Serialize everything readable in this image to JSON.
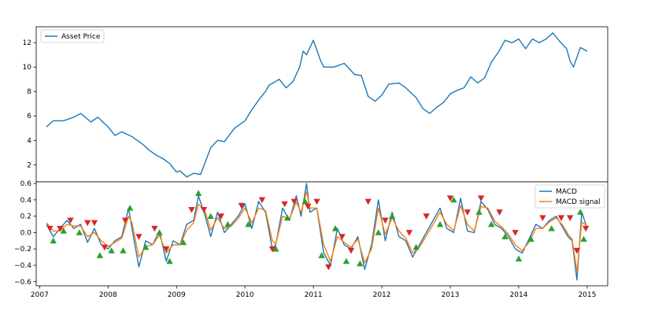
{
  "chart_data": [
    {
      "type": "line",
      "panel": "top",
      "legend_position": "upper-left",
      "xlim": [
        2006.95,
        2015.3
      ],
      "ylim": [
        0.6,
        13.3
      ],
      "grid": false,
      "yticks": [
        2,
        4,
        6,
        8,
        10,
        12
      ],
      "ytick_labels": [
        "2",
        "4",
        "6",
        "8",
        "10",
        "12"
      ],
      "series": [
        {
          "name": "Asset Price",
          "color": "#1f77b4",
          "x": [
            2007.1,
            2007.2,
            2007.35,
            2007.5,
            2007.6,
            2007.75,
            2007.85,
            2008.0,
            2008.1,
            2008.2,
            2008.35,
            2008.5,
            2008.6,
            2008.7,
            2008.8,
            2008.9,
            2009.0,
            2009.05,
            2009.15,
            2009.25,
            2009.35,
            2009.5,
            2009.6,
            2009.7,
            2009.85,
            2010.0,
            2010.1,
            2010.2,
            2010.3,
            2010.35,
            2010.5,
            2010.6,
            2010.7,
            2010.8,
            2010.85,
            2010.9,
            2011.0,
            2011.1,
            2011.15,
            2011.3,
            2011.45,
            2011.6,
            2011.7,
            2011.8,
            2011.9,
            2012.0,
            2012.1,
            2012.25,
            2012.35,
            2012.5,
            2012.6,
            2012.7,
            2012.8,
            2012.9,
            2013.0,
            2013.1,
            2013.2,
            2013.3,
            2013.4,
            2013.5,
            2013.6,
            2013.7,
            2013.8,
            2013.9,
            2014.0,
            2014.1,
            2014.2,
            2014.3,
            2014.4,
            2014.5,
            2014.6,
            2014.7,
            2014.75,
            2014.8,
            2014.9,
            2015.0
          ],
          "values": [
            5.1,
            5.6,
            5.6,
            5.9,
            6.2,
            5.5,
            5.9,
            5.1,
            4.4,
            4.7,
            4.3,
            3.7,
            3.2,
            2.8,
            2.5,
            2.1,
            1.4,
            1.5,
            1.0,
            1.3,
            1.2,
            3.4,
            4.0,
            3.9,
            5.0,
            5.6,
            6.5,
            7.3,
            8.0,
            8.5,
            9.0,
            8.3,
            8.8,
            10.0,
            11.3,
            11.0,
            12.2,
            10.6,
            10.0,
            10.0,
            10.3,
            9.4,
            9.3,
            7.6,
            7.2,
            7.7,
            8.6,
            8.7,
            8.3,
            7.5,
            6.6,
            6.2,
            6.7,
            7.1,
            7.8,
            8.1,
            8.3,
            9.2,
            8.7,
            9.1,
            10.4,
            11.2,
            12.2,
            12.0,
            12.3,
            11.5,
            12.3,
            12.0,
            12.3,
            12.8,
            12.1,
            11.5,
            10.5,
            10.0,
            11.6,
            11.3
          ]
        }
      ]
    },
    {
      "type": "line",
      "panel": "bottom",
      "legend_position": "upper-right",
      "xlim": [
        2006.95,
        2015.3
      ],
      "ylim": [
        -0.65,
        0.62
      ],
      "grid": false,
      "yticks": [
        -0.6,
        -0.4,
        -0.2,
        0.0,
        0.2,
        0.4,
        0.6
      ],
      "ytick_labels": [
        "−0.6",
        "−0.4",
        "−0.2",
        "0.0",
        "0.2",
        "0.4",
        "0.6"
      ],
      "xticks": [
        2007,
        2008,
        2009,
        2010,
        2011,
        2012,
        2013,
        2014,
        2015
      ],
      "xtick_labels": [
        "2007",
        "2008",
        "2009",
        "2010",
        "2011",
        "2012",
        "2013",
        "2014",
        "2015"
      ],
      "series": [
        {
          "name": "MACD",
          "color": "#1f77b4",
          "x": [
            2007.1,
            2007.2,
            2007.3,
            2007.4,
            2007.5,
            2007.6,
            2007.7,
            2007.8,
            2007.9,
            2008.0,
            2008.1,
            2008.2,
            2008.3,
            2008.35,
            2008.45,
            2008.55,
            2008.65,
            2008.75,
            2008.85,
            2008.95,
            2009.05,
            2009.15,
            2009.25,
            2009.32,
            2009.42,
            2009.5,
            2009.6,
            2009.7,
            2009.8,
            2009.9,
            2010.0,
            2010.1,
            2010.2,
            2010.3,
            2010.4,
            2010.45,
            2010.55,
            2010.65,
            2010.75,
            2010.82,
            2010.9,
            2010.95,
            2011.05,
            2011.15,
            2011.25,
            2011.35,
            2011.45,
            2011.55,
            2011.65,
            2011.75,
            2011.85,
            2011.95,
            2012.05,
            2012.15,
            2012.25,
            2012.35,
            2012.45,
            2012.55,
            2012.65,
            2012.75,
            2012.85,
            2012.95,
            2013.05,
            2013.15,
            2013.25,
            2013.35,
            2013.45,
            2013.55,
            2013.65,
            2013.75,
            2013.85,
            2013.95,
            2014.05,
            2014.15,
            2014.25,
            2014.35,
            2014.45,
            2014.55,
            2014.65,
            2014.72,
            2014.78,
            2014.85,
            2014.92,
            2015.0
          ],
          "values": [
            0.1,
            -0.05,
            0.05,
            0.15,
            0.05,
            0.1,
            -0.12,
            0.05,
            -0.15,
            -0.2,
            -0.1,
            -0.05,
            0.3,
            0.05,
            -0.42,
            -0.1,
            -0.15,
            0.02,
            -0.35,
            -0.1,
            -0.15,
            0.1,
            0.15,
            0.45,
            0.2,
            -0.05,
            0.25,
            0.0,
            0.1,
            0.2,
            0.35,
            0.05,
            0.38,
            0.25,
            -0.2,
            -0.15,
            0.3,
            0.15,
            0.45,
            0.2,
            0.6,
            0.25,
            0.3,
            -0.25,
            -0.4,
            0.05,
            -0.15,
            -0.2,
            -0.05,
            -0.45,
            -0.15,
            0.4,
            -0.1,
            0.25,
            -0.05,
            -0.1,
            -0.3,
            -0.15,
            0.0,
            0.15,
            0.3,
            0.05,
            0.0,
            0.42,
            0.02,
            0.0,
            0.38,
            0.28,
            0.1,
            0.05,
            -0.05,
            -0.2,
            -0.25,
            -0.08,
            0.1,
            0.05,
            0.15,
            0.2,
            0.05,
            -0.05,
            -0.1,
            -0.58,
            0.25,
            0.05
          ]
        },
        {
          "name": "MACD signal",
          "color": "#ff7f0e",
          "x": [
            2007.1,
            2007.2,
            2007.3,
            2007.4,
            2007.5,
            2007.6,
            2007.7,
            2007.8,
            2007.9,
            2008.0,
            2008.1,
            2008.2,
            2008.3,
            2008.35,
            2008.45,
            2008.55,
            2008.65,
            2008.75,
            2008.85,
            2008.95,
            2009.05,
            2009.15,
            2009.25,
            2009.32,
            2009.42,
            2009.5,
            2009.6,
            2009.7,
            2009.8,
            2009.9,
            2010.0,
            2010.1,
            2010.2,
            2010.3,
            2010.4,
            2010.45,
            2010.55,
            2010.65,
            2010.75,
            2010.82,
            2010.9,
            2010.95,
            2011.05,
            2011.15,
            2011.25,
            2011.35,
            2011.45,
            2011.55,
            2011.65,
            2011.75,
            2011.85,
            2011.95,
            2012.05,
            2012.15,
            2012.25,
            2012.35,
            2012.45,
            2012.55,
            2012.65,
            2012.75,
            2012.85,
            2012.95,
            2013.05,
            2013.15,
            2013.25,
            2013.35,
            2013.45,
            2013.55,
            2013.65,
            2013.75,
            2013.85,
            2013.95,
            2014.05,
            2014.15,
            2014.25,
            2014.35,
            2014.45,
            2014.55,
            2014.65,
            2014.72,
            2014.78,
            2014.85,
            2014.92,
            2015.0
          ],
          "values": [
            0.12,
            0.02,
            0.02,
            0.1,
            0.08,
            0.08,
            -0.05,
            0.0,
            -0.1,
            -0.17,
            -0.12,
            -0.07,
            0.2,
            0.12,
            -0.3,
            -0.17,
            -0.15,
            -0.03,
            -0.25,
            -0.15,
            -0.15,
            0.03,
            0.12,
            0.35,
            0.25,
            0.03,
            0.18,
            0.05,
            0.08,
            0.17,
            0.3,
            0.12,
            0.3,
            0.27,
            -0.1,
            -0.14,
            0.2,
            0.17,
            0.37,
            0.25,
            0.5,
            0.3,
            0.3,
            -0.15,
            -0.35,
            -0.05,
            -0.12,
            -0.18,
            -0.08,
            -0.37,
            -0.2,
            0.3,
            -0.02,
            0.18,
            0.02,
            -0.07,
            -0.25,
            -0.18,
            -0.04,
            0.1,
            0.25,
            0.1,
            0.02,
            0.33,
            0.1,
            0.02,
            0.32,
            0.3,
            0.14,
            0.07,
            -0.02,
            -0.15,
            -0.22,
            -0.12,
            0.05,
            0.05,
            0.13,
            0.18,
            0.08,
            -0.02,
            -0.08,
            -0.48,
            0.13,
            0.08
          ]
        },
        {
          "name": "",
          "marker": "triangle-up",
          "color": "#2ca02c",
          "x": [
            2007.2,
            2007.35,
            2007.58,
            2007.88,
            2008.05,
            2008.22,
            2008.32,
            2008.55,
            2008.75,
            2008.9,
            2009.1,
            2009.32,
            2009.5,
            2009.75,
            2010.05,
            2010.45,
            2010.62,
            2010.88,
            2011.12,
            2011.32,
            2011.48,
            2011.68,
            2011.95,
            2012.15,
            2012.5,
            2012.85,
            2013.05,
            2013.42,
            2013.6,
            2013.8,
            2014.0,
            2014.18,
            2014.48,
            2014.9,
            2014.95
          ],
          "values": [
            -0.1,
            0.02,
            0.0,
            -0.28,
            -0.22,
            -0.22,
            0.3,
            -0.18,
            0.0,
            -0.35,
            -0.12,
            0.48,
            0.2,
            0.1,
            0.1,
            -0.2,
            0.18,
            0.38,
            -0.28,
            0.05,
            -0.35,
            -0.38,
            0.0,
            0.2,
            -0.18,
            0.1,
            0.4,
            0.25,
            0.1,
            -0.05,
            -0.32,
            -0.08,
            0.05,
            0.25,
            -0.08
          ]
        },
        {
          "name": "",
          "marker": "triangle-down",
          "color": "#d62728",
          "x": [
            2007.15,
            2007.3,
            2007.45,
            2007.7,
            2007.8,
            2007.95,
            2008.25,
            2008.45,
            2008.68,
            2008.85,
            2009.22,
            2009.4,
            2009.65,
            2009.95,
            2010.25,
            2010.4,
            2010.58,
            2010.72,
            2010.92,
            2011.05,
            2011.22,
            2011.42,
            2011.55,
            2011.8,
            2012.05,
            2012.4,
            2012.65,
            2013.0,
            2013.25,
            2013.45,
            2013.72,
            2013.95,
            2014.35,
            2014.62,
            2014.75,
            2014.85,
            2014.98
          ],
          "values": [
            0.05,
            0.05,
            0.15,
            0.12,
            0.12,
            -0.18,
            0.15,
            -0.05,
            0.05,
            -0.2,
            0.28,
            0.28,
            0.2,
            0.33,
            0.4,
            -0.2,
            0.35,
            0.38,
            0.32,
            0.38,
            -0.42,
            -0.05,
            -0.22,
            0.38,
            0.15,
            0.0,
            0.2,
            0.42,
            0.25,
            0.42,
            0.25,
            0.0,
            0.18,
            0.18,
            0.18,
            -0.22,
            0.05
          ]
        }
      ]
    }
  ]
}
